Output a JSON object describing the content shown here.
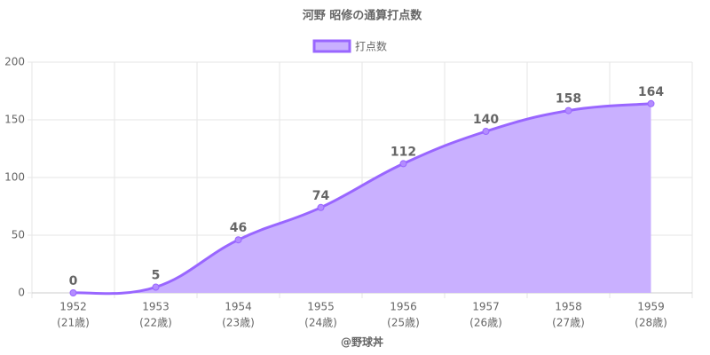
{
  "chart_data": {
    "type": "line",
    "title": "河野 昭修の通算打点数",
    "categories": [
      "1952",
      "1953",
      "1954",
      "1955",
      "1956",
      "1957",
      "1958",
      "1959"
    ],
    "category_sublabels": [
      "(21歳)",
      "(22歳)",
      "(23歳)",
      "(24歳)",
      "(25歳)",
      "(26歳)",
      "(27歳)",
      "(28歳)"
    ],
    "x_label": "@野球丼",
    "series": [
      {
        "name": "打点数",
        "color": "#9966ff",
        "fill": "#c9b0ff",
        "values": [
          0,
          5,
          46,
          74,
          112,
          140,
          158,
          164
        ]
      }
    ],
    "ylim": [
      0,
      200
    ],
    "yticks": [
      0,
      50,
      100,
      150,
      200
    ],
    "grid": true,
    "legend": "top",
    "smooth": true
  }
}
